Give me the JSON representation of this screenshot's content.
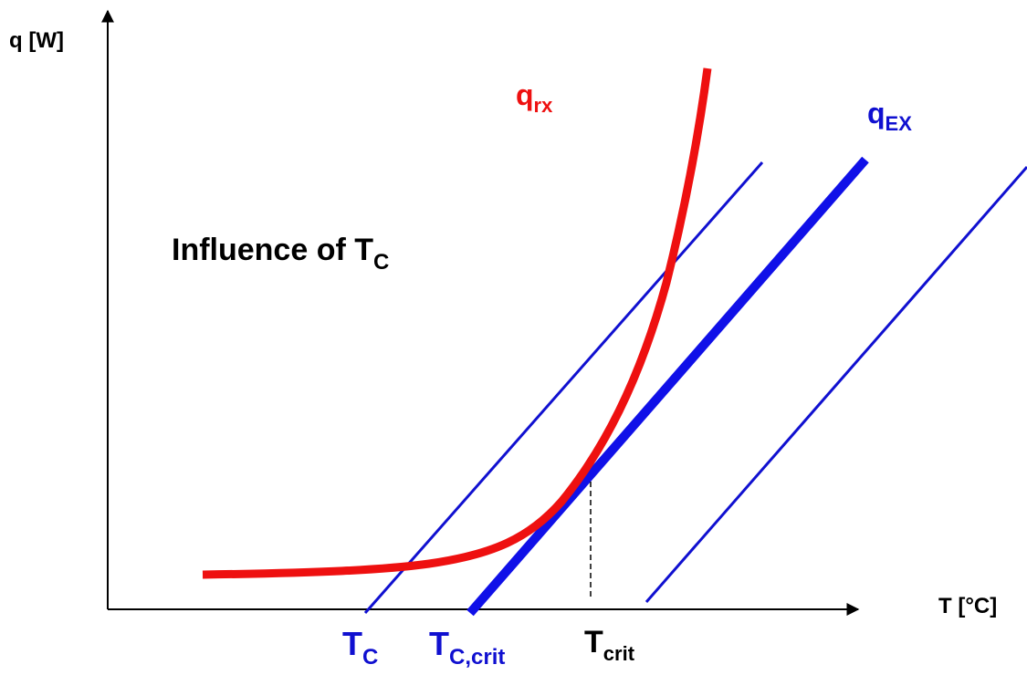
{
  "axes": {
    "y_label": "q [W]",
    "x_label": "T [°C]"
  },
  "curves": {
    "reaction": {
      "main": "q",
      "sub": "rx"
    },
    "exchange": {
      "main": "q",
      "sub": "EX"
    }
  },
  "title": {
    "main": "Influence of T",
    "sub": "C"
  },
  "markers": [
    {
      "main": "T",
      "sub": "C"
    },
    {
      "main": "T",
      "sub": "C,crit"
    },
    {
      "main": "T",
      "sub": "crit"
    }
  ]
}
